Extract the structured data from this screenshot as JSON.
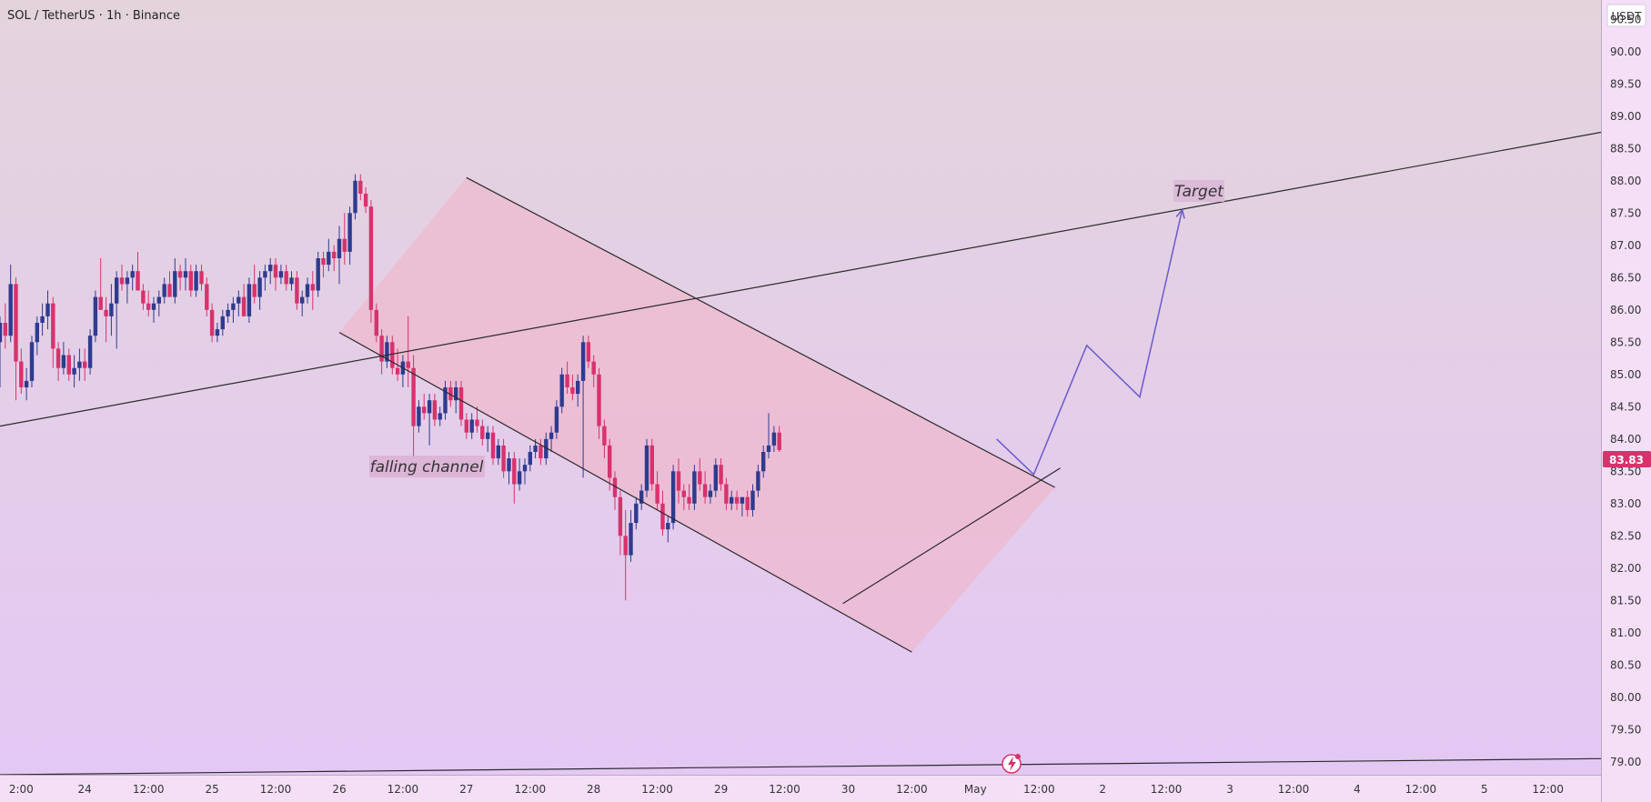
{
  "header": {
    "symbol_title": "SOL / TetherUS · 1h · Binance"
  },
  "price_axis": {
    "currency_label": "USDT",
    "ticks": [
      "90.50",
      "90.00",
      "89.50",
      "89.00",
      "88.50",
      "88.00",
      "87.50",
      "87.00",
      "86.50",
      "86.00",
      "85.50",
      "85.00",
      "84.50",
      "84.00",
      "83.50",
      "83.00",
      "82.50",
      "82.00",
      "81.50",
      "81.00",
      "80.50",
      "80.00",
      "79.50",
      "79.00"
    ],
    "last_price_label": "83.83"
  },
  "time_axis": {
    "ticks": [
      "2:00",
      "24",
      "12:00",
      "25",
      "12:00",
      "26",
      "12:00",
      "27",
      "12:00",
      "28",
      "12:00",
      "29",
      "12:00",
      "30",
      "12:00",
      "May",
      "12:00",
      "2",
      "12:00",
      "3",
      "12:00",
      "4",
      "12:00",
      "5",
      "12:00"
    ]
  },
  "annotations": {
    "falling_channel": "falling channel",
    "target": "Target"
  },
  "colors": {
    "bull": "#2e3b8f",
    "bear": "#d8326d",
    "bg_top": "#e3d4dc",
    "bg_bottom": "#e4c8f4",
    "channel_fill": "#f3b3c5",
    "price_badge": "#d8326d",
    "projection": "#6a5acd",
    "line": "#2b2b2b",
    "axis_bg": "#f4dff7"
  },
  "chart_data": {
    "type": "candlestick",
    "symbol": "SOL / TetherUS",
    "interval": "1h",
    "exchange": "Binance",
    "y_range": [
      78.8,
      90.8
    ],
    "last_price": 83.83,
    "candles": [
      [
        85.5,
        85.9,
        84.8,
        85.8
      ],
      [
        85.8,
        86.1,
        85.4,
        85.6
      ],
      [
        85.6,
        86.7,
        85.5,
        86.4
      ],
      [
        86.4,
        86.5,
        84.6,
        85.2
      ],
      [
        85.2,
        85.4,
        84.7,
        84.8
      ],
      [
        84.8,
        85.1,
        84.6,
        84.9
      ],
      [
        84.9,
        85.6,
        84.8,
        85.5
      ],
      [
        85.5,
        85.9,
        85.3,
        85.8
      ],
      [
        85.8,
        86.1,
        85.6,
        85.9
      ],
      [
        85.9,
        86.3,
        85.7,
        86.1
      ],
      [
        86.1,
        86.2,
        85.1,
        85.4
      ],
      [
        85.4,
        85.5,
        84.9,
        85.1
      ],
      [
        85.1,
        85.5,
        85.0,
        85.3
      ],
      [
        85.3,
        85.4,
        84.9,
        85.0
      ],
      [
        85.0,
        85.3,
        84.8,
        85.1
      ],
      [
        85.1,
        85.4,
        84.9,
        85.2
      ],
      [
        85.2,
        85.4,
        84.9,
        85.1
      ],
      [
        85.1,
        85.7,
        85.0,
        85.6
      ],
      [
        85.6,
        86.3,
        85.5,
        86.2
      ],
      [
        86.2,
        86.8,
        86.0,
        86.0
      ],
      [
        86.0,
        86.2,
        85.5,
        85.9
      ],
      [
        85.9,
        86.4,
        85.6,
        86.1
      ],
      [
        86.1,
        86.6,
        85.4,
        86.5
      ],
      [
        86.5,
        86.7,
        86.3,
        86.4
      ],
      [
        86.4,
        86.6,
        86.1,
        86.5
      ],
      [
        86.5,
        86.7,
        86.3,
        86.6
      ],
      [
        86.6,
        86.9,
        86.4,
        86.3
      ],
      [
        86.3,
        86.4,
        86.0,
        86.1
      ],
      [
        86.1,
        86.3,
        85.9,
        86.0
      ],
      [
        86.0,
        86.2,
        85.8,
        86.1
      ],
      [
        86.1,
        86.3,
        85.9,
        86.2
      ],
      [
        86.2,
        86.5,
        86.1,
        86.4
      ],
      [
        86.4,
        86.6,
        86.2,
        86.2
      ],
      [
        86.2,
        86.8,
        86.1,
        86.6
      ],
      [
        86.6,
        86.7,
        86.3,
        86.5
      ],
      [
        86.5,
        86.8,
        86.3,
        86.6
      ],
      [
        86.6,
        86.7,
        86.2,
        86.3
      ],
      [
        86.3,
        86.7,
        86.2,
        86.6
      ],
      [
        86.6,
        86.7,
        86.3,
        86.4
      ],
      [
        86.4,
        86.5,
        85.9,
        86.0
      ],
      [
        86.0,
        86.1,
        85.5,
        85.6
      ],
      [
        85.6,
        85.8,
        85.5,
        85.7
      ],
      [
        85.7,
        86.0,
        85.6,
        85.9
      ],
      [
        85.9,
        86.1,
        85.8,
        86.0
      ],
      [
        86.0,
        86.2,
        85.8,
        86.1
      ],
      [
        86.1,
        86.3,
        85.9,
        86.2
      ],
      [
        86.2,
        86.4,
        86.0,
        85.9
      ],
      [
        85.9,
        86.5,
        85.8,
        86.4
      ],
      [
        86.4,
        86.7,
        86.1,
        86.2
      ],
      [
        86.2,
        86.6,
        86.0,
        86.5
      ],
      [
        86.5,
        86.7,
        86.3,
        86.6
      ],
      [
        86.6,
        86.8,
        86.4,
        86.7
      ],
      [
        86.7,
        86.8,
        86.3,
        86.5
      ],
      [
        86.5,
        86.7,
        86.4,
        86.6
      ],
      [
        86.6,
        86.7,
        86.3,
        86.4
      ],
      [
        86.4,
        86.6,
        86.3,
        86.5
      ],
      [
        86.5,
        86.6,
        86.0,
        86.1
      ],
      [
        86.1,
        86.3,
        85.9,
        86.2
      ],
      [
        86.2,
        86.5,
        86.1,
        86.4
      ],
      [
        86.4,
        86.6,
        86.0,
        86.3
      ],
      [
        86.3,
        86.9,
        86.2,
        86.8
      ],
      [
        86.8,
        86.9,
        86.5,
        86.7
      ],
      [
        86.7,
        87.1,
        86.6,
        86.9
      ],
      [
        86.9,
        87.0,
        86.6,
        86.8
      ],
      [
        86.8,
        87.3,
        86.4,
        87.1
      ],
      [
        87.1,
        87.5,
        86.7,
        86.9
      ],
      [
        86.9,
        87.6,
        86.7,
        87.5
      ],
      [
        87.5,
        88.1,
        87.4,
        88.0
      ],
      [
        88.0,
        88.1,
        87.7,
        87.8
      ],
      [
        87.8,
        87.9,
        87.5,
        87.6
      ],
      [
        87.6,
        87.7,
        85.8,
        86.0
      ],
      [
        86.0,
        86.1,
        85.5,
        85.6
      ],
      [
        85.6,
        85.7,
        85.0,
        85.2
      ],
      [
        85.2,
        85.6,
        85.1,
        85.5
      ],
      [
        85.5,
        85.6,
        85.0,
        85.1
      ],
      [
        85.1,
        85.4,
        84.9,
        85.0
      ],
      [
        85.0,
        85.3,
        84.8,
        85.2
      ],
      [
        85.2,
        85.9,
        84.8,
        85.1
      ],
      [
        85.1,
        85.3,
        83.7,
        84.2
      ],
      [
        84.2,
        84.6,
        84.1,
        84.5
      ],
      [
        84.5,
        84.7,
        84.3,
        84.4
      ],
      [
        84.4,
        84.7,
        83.9,
        84.6
      ],
      [
        84.6,
        84.7,
        84.2,
        84.3
      ],
      [
        84.3,
        84.5,
        84.2,
        84.4
      ],
      [
        84.4,
        84.9,
        84.3,
        84.8
      ],
      [
        84.8,
        84.9,
        84.5,
        84.6
      ],
      [
        84.6,
        84.9,
        84.4,
        84.8
      ],
      [
        84.8,
        84.9,
        84.2,
        84.3
      ],
      [
        84.3,
        84.4,
        84.0,
        84.1
      ],
      [
        84.1,
        84.4,
        84.0,
        84.3
      ],
      [
        84.3,
        84.5,
        84.1,
        84.2
      ],
      [
        84.2,
        84.3,
        83.9,
        84.0
      ],
      [
        84.0,
        84.2,
        83.8,
        84.1
      ],
      [
        84.1,
        84.2,
        83.6,
        83.7
      ],
      [
        83.7,
        84.0,
        83.6,
        83.9
      ],
      [
        83.9,
        84.0,
        83.4,
        83.5
      ],
      [
        83.5,
        83.8,
        83.3,
        83.7
      ],
      [
        83.7,
        83.8,
        83.0,
        83.3
      ],
      [
        83.3,
        83.7,
        83.2,
        83.5
      ],
      [
        83.5,
        83.7,
        83.3,
        83.6
      ],
      [
        83.6,
        83.9,
        83.5,
        83.8
      ],
      [
        83.8,
        84.0,
        83.7,
        83.9
      ],
      [
        83.9,
        84.0,
        83.6,
        83.7
      ],
      [
        83.7,
        84.1,
        83.6,
        84.0
      ],
      [
        84.0,
        84.2,
        83.8,
        84.1
      ],
      [
        84.1,
        84.6,
        84.0,
        84.5
      ],
      [
        84.5,
        85.1,
        84.4,
        85.0
      ],
      [
        85.0,
        85.2,
        84.7,
        84.8
      ],
      [
        84.8,
        85.0,
        84.6,
        84.7
      ],
      [
        84.7,
        85.0,
        84.5,
        84.9
      ],
      [
        84.9,
        85.6,
        83.4,
        85.5
      ],
      [
        85.5,
        85.6,
        85.1,
        85.2
      ],
      [
        85.2,
        85.3,
        84.8,
        85.0
      ],
      [
        85.0,
        85.1,
        84.0,
        84.2
      ],
      [
        84.2,
        84.3,
        83.7,
        83.9
      ],
      [
        83.9,
        84.0,
        83.2,
        83.4
      ],
      [
        83.4,
        83.5,
        82.9,
        83.1
      ],
      [
        83.1,
        83.2,
        82.2,
        82.5
      ],
      [
        82.5,
        82.9,
        81.5,
        82.2
      ],
      [
        82.2,
        82.9,
        82.1,
        82.7
      ],
      [
        82.7,
        83.1,
        82.6,
        83.0
      ],
      [
        83.0,
        83.3,
        82.9,
        83.2
      ],
      [
        83.2,
        84.0,
        83.1,
        83.9
      ],
      [
        83.9,
        84.0,
        83.2,
        83.3
      ],
      [
        83.3,
        83.5,
        82.9,
        83.0
      ],
      [
        83.0,
        83.2,
        82.5,
        82.6
      ],
      [
        82.6,
        82.8,
        82.4,
        82.7
      ],
      [
        82.7,
        83.6,
        82.6,
        83.5
      ],
      [
        83.5,
        83.7,
        83.0,
        83.2
      ],
      [
        83.2,
        83.3,
        82.9,
        83.1
      ],
      [
        83.1,
        83.3,
        82.9,
        83.0
      ],
      [
        83.0,
        83.6,
        82.9,
        83.5
      ],
      [
        83.5,
        83.7,
        83.2,
        83.3
      ],
      [
        83.3,
        83.5,
        83.0,
        83.1
      ],
      [
        83.1,
        83.3,
        83.0,
        83.2
      ],
      [
        83.2,
        83.7,
        83.1,
        83.6
      ],
      [
        83.6,
        83.7,
        83.2,
        83.3
      ],
      [
        83.3,
        83.4,
        82.9,
        83.0
      ],
      [
        83.0,
        83.2,
        82.9,
        83.1
      ],
      [
        83.1,
        83.2,
        82.9,
        83.0
      ],
      [
        83.0,
        83.1,
        82.8,
        83.1
      ],
      [
        83.1,
        83.2,
        82.8,
        82.9
      ],
      [
        82.9,
        83.3,
        82.8,
        83.2
      ],
      [
        83.2,
        83.6,
        83.1,
        83.5
      ],
      [
        83.5,
        83.9,
        83.4,
        83.8
      ],
      [
        83.8,
        84.4,
        83.7,
        83.9
      ],
      [
        83.9,
        84.2,
        83.8,
        84.1
      ],
      [
        84.1,
        84.2,
        83.8,
        83.83
      ]
    ],
    "trendlines": [
      {
        "name": "rising-trendline",
        "points": [
          [
            "2024-04-23T08:00",
            84.2
          ],
          [
            "2024-05-05T22:00",
            88.75
          ]
        ]
      },
      {
        "name": "channel-upper-line",
        "points": [
          [
            "2024-04-27T00:00",
            88.05
          ],
          [
            "2024-05-01T15:00",
            83.25
          ]
        ]
      },
      {
        "name": "channel-lower-line",
        "points": [
          [
            "2024-04-26T00:00",
            85.65
          ],
          [
            "2024-04-30T12:00",
            80.7
          ]
        ]
      },
      {
        "name": "wedge-support-line",
        "points": [
          [
            "2024-04-29T23:00",
            81.45
          ],
          [
            "2024-05-01T16:00",
            83.55
          ]
        ]
      },
      {
        "name": "bottom-support-line",
        "points": [
          [
            "2024-04-23T08:00",
            78.8
          ],
          [
            "2024-05-05T22:00",
            79.05
          ]
        ]
      }
    ],
    "projection_path": [
      [
        "2024-05-01T04:00",
        84.0
      ],
      [
        "2024-05-01T11:00",
        83.45
      ],
      [
        "2024-05-01T21:00",
        85.45
      ],
      [
        "2024-05-02T07:00",
        84.65
      ],
      [
        "2024-05-02T15:00",
        87.55
      ]
    ]
  }
}
